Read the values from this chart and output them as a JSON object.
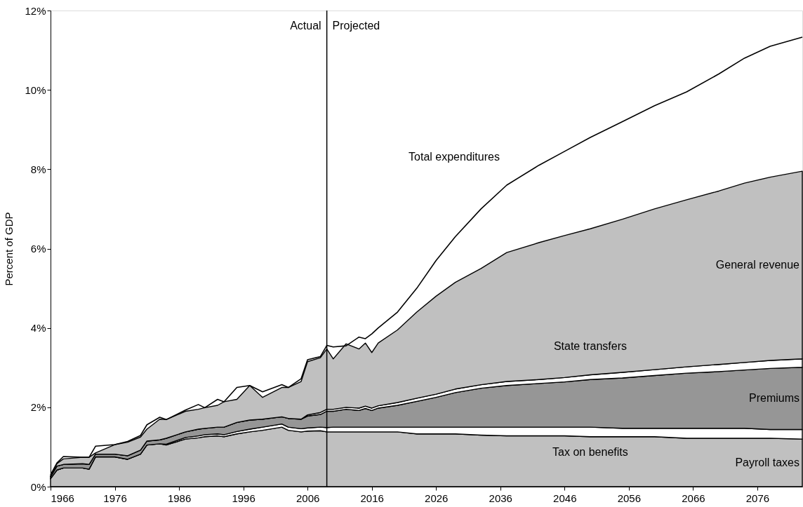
{
  "chart_data": {
    "type": "area",
    "stacked": true,
    "ylabel": "Percent of GDP",
    "x": [
      1966,
      1967,
      1968,
      1971,
      1972,
      1973,
      1976,
      1978,
      1980,
      1981,
      1983,
      1984,
      1987,
      1989,
      1990,
      1992,
      1993,
      1995,
      1997,
      1999,
      2002,
      2003,
      2005,
      2006,
      2008,
      2009,
      2010,
      2012,
      2014,
      2015,
      2016,
      2017,
      2020,
      2023,
      2026,
      2029,
      2033,
      2037,
      2042,
      2046,
      2050,
      2055,
      2060,
      2065,
      2070,
      2074,
      2078,
      2083
    ],
    "series": [
      {
        "name": "Payroll taxes",
        "color": "#c0c0c0",
        "values": [
          0.2,
          0.42,
          0.47,
          0.47,
          0.44,
          0.75,
          0.75,
          0.69,
          0.82,
          1.05,
          1.08,
          1.05,
          1.2,
          1.23,
          1.26,
          1.28,
          1.26,
          1.33,
          1.38,
          1.42,
          1.5,
          1.42,
          1.38,
          1.4,
          1.41,
          1.38,
          1.38,
          1.38,
          1.38,
          1.38,
          1.38,
          1.38,
          1.38,
          1.33,
          1.33,
          1.33,
          1.3,
          1.28,
          1.28,
          1.28,
          1.26,
          1.26,
          1.26,
          1.22,
          1.22,
          1.22,
          1.22,
          1.2
        ]
      },
      {
        "name": "Tax on benefits",
        "color": "#ffffff",
        "values": [
          0,
          0,
          0,
          0,
          0,
          0,
          0,
          0,
          0,
          0,
          0,
          0.02,
          0.04,
          0.05,
          0.05,
          0.05,
          0.05,
          0.06,
          0.07,
          0.08,
          0.08,
          0.08,
          0.08,
          0.08,
          0.09,
          0.11,
          0.12,
          0.12,
          0.12,
          0.12,
          0.12,
          0.12,
          0.12,
          0.17,
          0.17,
          0.17,
          0.2,
          0.22,
          0.22,
          0.22,
          0.24,
          0.21,
          0.21,
          0.25,
          0.25,
          0.25,
          0.22,
          0.24
        ]
      },
      {
        "name": "Premiums",
        "color": "#969696",
        "values": [
          0.05,
          0.1,
          0.09,
          0.11,
          0.12,
          0.07,
          0.07,
          0.09,
          0.1,
          0.1,
          0.1,
          0.15,
          0.14,
          0.17,
          0.16,
          0.17,
          0.19,
          0.23,
          0.23,
          0.2,
          0.18,
          0.22,
          0.24,
          0.3,
          0.32,
          0.41,
          0.4,
          0.45,
          0.42,
          0.47,
          0.42,
          0.48,
          0.55,
          0.65,
          0.75,
          0.87,
          0.98,
          1.05,
          1.1,
          1.14,
          1.2,
          1.27,
          1.33,
          1.39,
          1.43,
          1.47,
          1.54,
          1.57
        ]
      },
      {
        "name": "State transfers",
        "color": "#ffffff",
        "values": [
          0,
          0,
          0,
          0,
          0,
          0,
          0,
          0,
          0,
          0,
          0,
          0,
          0,
          0,
          0,
          0,
          0,
          0,
          0,
          0,
          0,
          0,
          0,
          0.03,
          0.05,
          0.05,
          0.05,
          0.05,
          0.06,
          0.06,
          0.06,
          0.06,
          0.07,
          0.08,
          0.08,
          0.09,
          0.09,
          0.1,
          0.1,
          0.11,
          0.12,
          0.14,
          0.15,
          0.16,
          0.18,
          0.19,
          0.2,
          0.21
        ]
      },
      {
        "name": "General revenue",
        "color": "#c0c0c0",
        "values": [
          0.03,
          0.06,
          0.14,
          0.16,
          0.18,
          0.03,
          0.24,
          0.34,
          0.33,
          0.3,
          0.52,
          0.47,
          0.52,
          0.5,
          0.52,
          0.55,
          0.64,
          0.58,
          0.87,
          0.55,
          0.74,
          0.78,
          0.95,
          1.34,
          1.38,
          1.52,
          1.27,
          1.6,
          1.49,
          1.59,
          1.4,
          1.58,
          1.83,
          2.17,
          2.47,
          2.69,
          2.93,
          3.25,
          3.45,
          3.58,
          3.68,
          3.86,
          4.05,
          4.21,
          4.37,
          4.52,
          4.62,
          4.73
        ]
      },
      {
        "name": "Total expenditures",
        "type": "line",
        "color": "#000000",
        "values": [
          0.3,
          0.6,
          0.76,
          0.74,
          0.74,
          1.02,
          1.06,
          1.14,
          1.29,
          1.56,
          1.75,
          1.69,
          1.93,
          2.07,
          1.99,
          2.2,
          2.14,
          2.5,
          2.55,
          2.39,
          2.57,
          2.5,
          2.72,
          3.2,
          3.28,
          3.56,
          3.52,
          3.55,
          3.77,
          3.73,
          3.85,
          4.0,
          4.4,
          5.0,
          5.7,
          6.3,
          7.0,
          7.6,
          8.1,
          8.45,
          8.8,
          9.2,
          9.6,
          9.95,
          10.4,
          10.8,
          11.1,
          11.33
        ]
      }
    ],
    "xlim": [
      1966,
      2083
    ],
    "xticks": [
      1966,
      1976,
      1986,
      1996,
      2006,
      2016,
      2026,
      2036,
      2046,
      2056,
      2066,
      2076
    ],
    "ylim": [
      0,
      12
    ],
    "yticks": [
      {
        "value": 0,
        "label": "0%"
      },
      {
        "value": 2,
        "label": "2%"
      },
      {
        "value": 4,
        "label": "4%"
      },
      {
        "value": 6,
        "label": "6%"
      },
      {
        "value": 8,
        "label": "8%"
      },
      {
        "value": 10,
        "label": "10%"
      },
      {
        "value": 12,
        "label": "12%"
      }
    ],
    "ref_lines": [
      {
        "axis": "x",
        "value": 2009,
        "color": "#000000",
        "label": "Actual"
      }
    ],
    "annotations": [
      "Projected"
    ],
    "grid": false,
    "legend": false
  }
}
